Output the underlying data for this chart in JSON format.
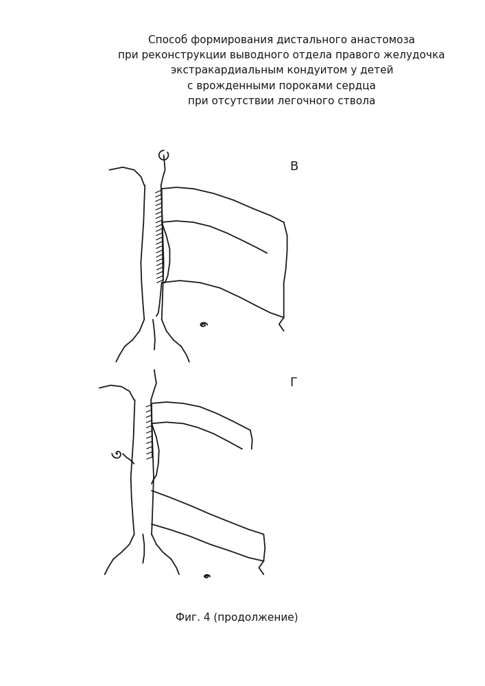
{
  "title_lines": [
    "Способ формирования дистального анастомоза",
    "при реконструкции выводного отдела правого желудочка",
    "экстракардиальным кондуитом у детей",
    "с врожденными пороками сердца",
    "при отсутствии легочного ствола"
  ],
  "label_B": "В",
  "label_G": "Г",
  "caption": "Фиг. 4 (продолжение)",
  "bg_color": "#ffffff",
  "line_color": "#1a1a1a",
  "title_fontsize": 11,
  "label_fontsize": 13,
  "caption_fontsize": 11
}
